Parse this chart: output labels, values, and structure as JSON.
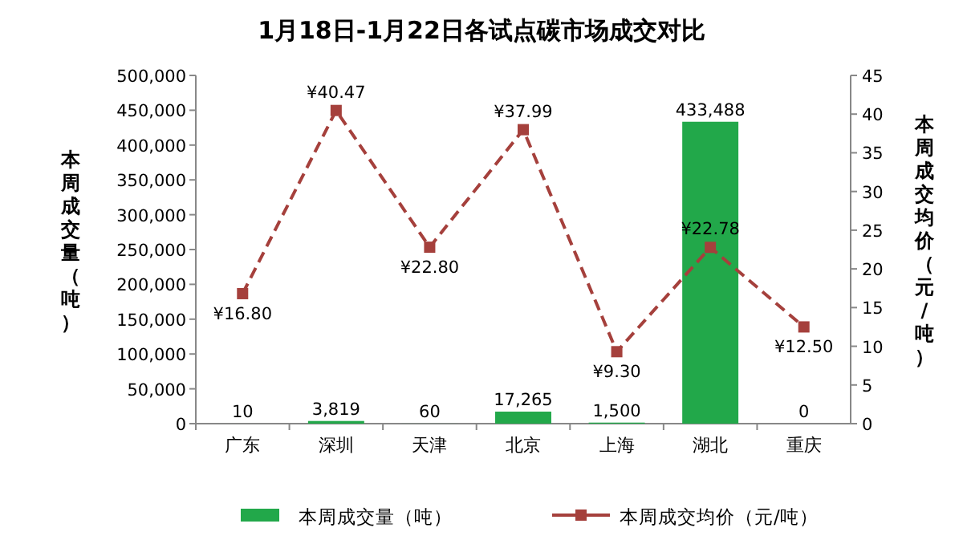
{
  "chart_data": {
    "type": "bar",
    "title": "1月18日-1月22日各试点碳市场成交对比",
    "categories": [
      "广东",
      "深圳",
      "天津",
      "北京",
      "上海",
      "湖北",
      "重庆"
    ],
    "ylabel": "本周成交量（吨）",
    "y2label": "本周成交均价（元/吨）",
    "ylim": [
      0,
      500000
    ],
    "yticks": [
      0,
      {
        "value": 50000,
        "label": "50,000"
      },
      {
        "value": 100000,
        "label": "100,000"
      },
      {
        "value": 150000,
        "label": "150,000"
      },
      {
        "value": 200000,
        "label": "200,000"
      },
      {
        "value": 250000,
        "label": "250,000"
      },
      {
        "value": 300000,
        "label": "300,000"
      },
      {
        "value": 350000,
        "label": "350,000"
      },
      {
        "value": 400000,
        "label": "400,000"
      },
      {
        "value": 450000,
        "label": "450,000"
      },
      {
        "value": 500000,
        "label": "500,000"
      }
    ],
    "y2lim": [
      0,
      45
    ],
    "y2ticks": [
      0,
      5,
      10,
      15,
      20,
      25,
      30,
      35,
      40,
      45
    ],
    "legend": "bottom",
    "marker": "square",
    "line_style": "dashed",
    "series": [
      {
        "name": "本周成交量（吨）",
        "color": "#22a84a",
        "values": [
          10,
          3819,
          60,
          17265,
          1500,
          433488,
          0
        ],
        "value_labels": [
          "10",
          "3,819",
          "60",
          "17,265",
          "1,500",
          "433,488",
          "0"
        ]
      },
      {
        "name": "本周成交均价（元/吨）",
        "type": "line",
        "axis": "y2",
        "color": "#a5403c",
        "values": [
          16.8,
          40.47,
          22.8,
          37.99,
          9.3,
          22.78,
          12.5
        ],
        "value_labels": [
          "¥16.80",
          "¥40.47",
          "¥22.80",
          "¥37.99",
          "¥9.30",
          "¥22.78",
          "¥12.50"
        ]
      }
    ]
  }
}
